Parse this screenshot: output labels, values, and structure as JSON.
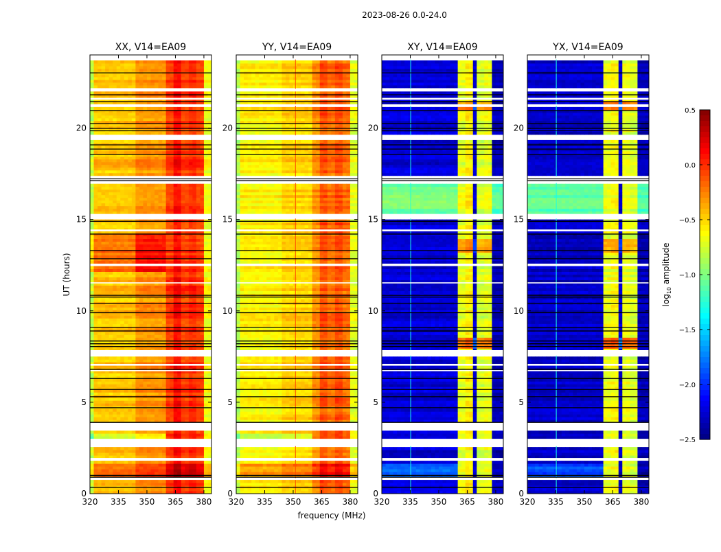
{
  "chart_data": {
    "type": "heatmap",
    "title": "2023-08-26 0.0-24.0",
    "xlabel": "frequency (MHz)",
    "ylabel": "UT (hours)",
    "xlim": [
      320,
      384
    ],
    "ylim": [
      0,
      24
    ],
    "xticks": [
      "320",
      "335",
      "350",
      "365",
      "380"
    ],
    "xtick_values": [
      320,
      335,
      350,
      365,
      380
    ],
    "yticks": [
      "0",
      "5",
      "10",
      "15",
      "20"
    ],
    "ytick_values": [
      0,
      5,
      10,
      15,
      20
    ],
    "colorbar": {
      "label": "log10 amplitude",
      "label_main": "log",
      "label_sub": "10",
      "label_rest": " amplitude",
      "range": [
        -2.5,
        0.5
      ],
      "ticks": [
        "0.5",
        "0.0",
        "−0.5",
        "−1.0",
        "−1.5",
        "−2.0",
        "−2.5"
      ],
      "tick_values": [
        0.5,
        0.0,
        -0.5,
        -1.0,
        -1.5,
        -2.0,
        -2.5
      ],
      "colormap": "jet"
    },
    "grid": false,
    "panels": [
      {
        "title": "XX, V14=EA09",
        "freq_bands": [
          [
            320,
            322,
            -0.8
          ],
          [
            322,
            345,
            -0.45
          ],
          [
            345,
            361,
            -0.3
          ],
          [
            361,
            364,
            -0.05
          ],
          [
            364,
            368,
            0.12
          ],
          [
            368,
            372,
            -0.05
          ],
          [
            372,
            376,
            0.02
          ],
          [
            376,
            380,
            -0.05
          ],
          [
            380,
            384,
            -0.65
          ]
        ],
        "time_mods": [
          [
            12.2,
            14.2,
            345,
            361,
            0.4
          ],
          [
            12.2,
            14.2,
            320,
            345,
            0.25
          ],
          [
            0.9,
            1.7,
            320,
            384,
            0.25
          ],
          [
            2.8,
            3.3,
            320,
            361,
            -0.35
          ]
        ],
        "vlines": []
      },
      {
        "title": "YY, V14=EA09",
        "freq_bands": [
          [
            320,
            322,
            -0.85
          ],
          [
            322,
            345,
            -0.6
          ],
          [
            345,
            361,
            -0.5
          ],
          [
            361,
            364,
            -0.3
          ],
          [
            364,
            368,
            -0.1
          ],
          [
            368,
            372,
            -0.2
          ],
          [
            372,
            376,
            -0.1
          ],
          [
            376,
            380,
            -0.2
          ],
          [
            380,
            384,
            -0.7
          ]
        ],
        "time_mods": [
          [
            0.9,
            1.7,
            320,
            384,
            0.25
          ],
          [
            2.8,
            3.3,
            320,
            361,
            -0.3
          ]
        ],
        "vlines": [
          [
            351,
            352,
            -0.1
          ]
        ]
      },
      {
        "title": "XY, V14=EA09",
        "freq_bands": [
          [
            320,
            361,
            -2.25
          ],
          [
            361,
            364,
            -0.7
          ],
          [
            364,
            365,
            -2.3
          ],
          [
            365,
            369,
            -0.6
          ],
          [
            369,
            370,
            -2.3
          ],
          [
            370,
            374,
            -0.75
          ],
          [
            374,
            375,
            -2.3
          ],
          [
            375,
            379,
            -0.7
          ],
          [
            379,
            384,
            -2.35
          ]
        ],
        "time_mods": [
          [
            15.3,
            17.2,
            320,
            361,
            1.2
          ],
          [
            15.3,
            17.2,
            379,
            384,
            1.2
          ],
          [
            0.9,
            1.7,
            320,
            361,
            0.4
          ],
          [
            7.9,
            8.6,
            361,
            379,
            0.5
          ],
          [
            13.2,
            14.0,
            361,
            379,
            0.35
          ],
          [
            21.0,
            21.4,
            361,
            379,
            0.4
          ]
        ],
        "vlines": [
          [
            335,
            336,
            -1.3
          ]
        ]
      },
      {
        "title": "YX, V14=EA09",
        "freq_bands": [
          [
            320,
            361,
            -2.3
          ],
          [
            361,
            364,
            -0.7
          ],
          [
            364,
            365,
            -2.3
          ],
          [
            365,
            369,
            -0.65
          ],
          [
            369,
            370,
            -2.3
          ],
          [
            370,
            374,
            -0.7
          ],
          [
            374,
            375,
            -2.3
          ],
          [
            375,
            379,
            -0.75
          ],
          [
            379,
            384,
            -2.35
          ]
        ],
        "time_mods": [
          [
            15.3,
            17.2,
            320,
            361,
            1.2
          ],
          [
            15.3,
            17.2,
            379,
            384,
            1.2
          ],
          [
            0.9,
            1.7,
            320,
            361,
            0.4
          ],
          [
            7.9,
            8.6,
            361,
            379,
            0.5
          ],
          [
            13.2,
            14.0,
            361,
            379,
            0.35
          ],
          [
            21.0,
            21.4,
            361,
            379,
            0.4
          ]
        ],
        "vlines": [
          [
            335,
            336,
            -1.3
          ]
        ]
      }
    ],
    "flagged_intervals_hours": [
      [
        23.75,
        24
      ],
      [
        22.0,
        22.15
      ],
      [
        21.55,
        21.65
      ],
      [
        21.22,
        21.3
      ],
      [
        19.35,
        19.6
      ],
      [
        17.0,
        17.35
      ],
      [
        15.05,
        15.3
      ],
      [
        14.35,
        14.45
      ],
      [
        12.45,
        12.55
      ],
      [
        11.5,
        11.56
      ],
      [
        7.55,
        7.85
      ],
      [
        7.0,
        7.1
      ],
      [
        6.7,
        6.76
      ],
      [
        3.45,
        3.9
      ],
      [
        2.6,
        3.0
      ],
      [
        1.85,
        1.95
      ],
      [
        0.75,
        0.85
      ]
    ],
    "flag_lines_hours": [
      23.02,
      21.82,
      21.45,
      20.95,
      20.25,
      19.98,
      19.85,
      19.08,
      18.85,
      18.55,
      17.22,
      17.12,
      14.9,
      14.2,
      13.3,
      12.85,
      10.85,
      10.75,
      10.4,
      9.9,
      9.1,
      8.9,
      8.35,
      8.2,
      8.05,
      6.8,
      6.3,
      5.7,
      5.3,
      4.7,
      3.9,
      1.0,
      0.9,
      0.35
    ]
  }
}
